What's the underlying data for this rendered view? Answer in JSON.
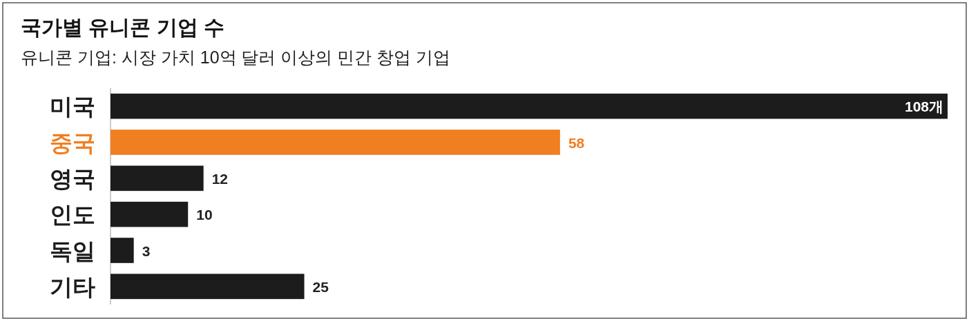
{
  "chart_data": {
    "type": "bar",
    "orientation": "horizontal",
    "title": "국가별 유니콘 기업 수",
    "subtitle": "유니콘 기업: 시장 가치 10억 달러 이상의 민간 창업 기업",
    "categories": [
      "미국",
      "중국",
      "영국",
      "인도",
      "독일",
      "기타"
    ],
    "values": [
      108,
      58,
      12,
      10,
      3,
      25
    ],
    "colors": [
      "#1c1c1c",
      "#f07f22",
      "#1c1c1c",
      "#1c1c1c",
      "#1c1c1c",
      "#1c1c1c"
    ],
    "value_labels": [
      "108개",
      "58",
      "12",
      "10",
      "3",
      "25"
    ]
  }
}
